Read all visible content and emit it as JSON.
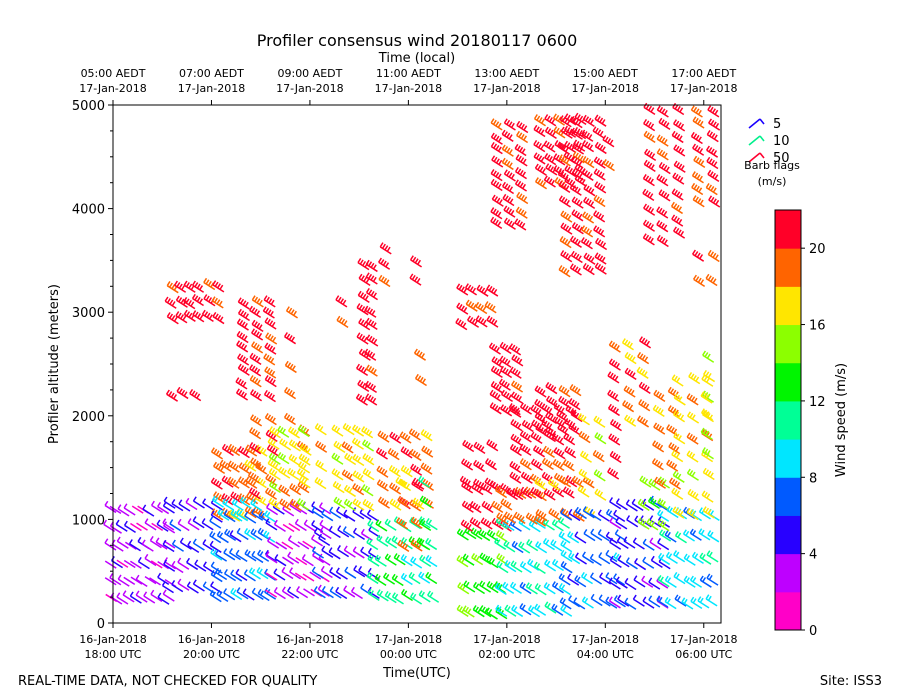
{
  "chart_data": {
    "type": "scatter",
    "title": "Profiler consensus wind 20180117 0600",
    "xlabel": "Time(UTC)",
    "xlabel_top": "Time (local)",
    "ylabel": "Profiler altitude (meters)",
    "ylim": [
      0,
      5000
    ],
    "xlim_hours_since_start": [
      0,
      12.35
    ],
    "y_ticks": [
      0,
      1000,
      2000,
      3000,
      4000,
      5000
    ],
    "x_ticks_bottom": [
      {
        "t": 0,
        "line1": "16-Jan-2018",
        "line2": "18:00 UTC"
      },
      {
        "t": 2,
        "line1": "16-Jan-2018",
        "line2": "20:00 UTC"
      },
      {
        "t": 4,
        "line1": "16-Jan-2018",
        "line2": "22:00 UTC"
      },
      {
        "t": 6,
        "line1": "17-Jan-2018",
        "line2": "00:00 UTC"
      },
      {
        "t": 8,
        "line1": "17-Jan-2018",
        "line2": "02:00 UTC"
      },
      {
        "t": 10,
        "line1": "17-Jan-2018",
        "line2": "04:00 UTC"
      },
      {
        "t": 12,
        "line1": "17-Jan-2018",
        "line2": "06:00 UTC"
      }
    ],
    "x_ticks_top": [
      {
        "t": 0,
        "line1": "05:00 AEDT",
        "line2": "17-Jan-2018"
      },
      {
        "t": 2,
        "line1": "07:00 AEDT",
        "line2": "17-Jan-2018"
      },
      {
        "t": 4,
        "line1": "09:00 AEDT",
        "line2": "17-Jan-2018"
      },
      {
        "t": 6,
        "line1": "11:00 AEDT",
        "line2": "17-Jan-2018"
      },
      {
        "t": 8,
        "line1": "13:00 AEDT",
        "line2": "17-Jan-2018"
      },
      {
        "t": 10,
        "line1": "15:00 AEDT",
        "line2": "17-Jan-2018"
      },
      {
        "t": 12,
        "line1": "17:00 AEDT",
        "line2": "17-Jan-2018"
      }
    ],
    "legend": {
      "title_line1": "Barb flags",
      "title_line2": "(m/s)",
      "entries": [
        {
          "label": "5",
          "color": "#1a00ff"
        },
        {
          "label": "10",
          "color": "#00f08c"
        },
        {
          "label": "50",
          "color": "#ff0030"
        }
      ]
    },
    "colorbar": {
      "label": "Wind speed (m/s)",
      "min": 0,
      "max": 22,
      "step": 2,
      "ticks": [
        0,
        4,
        8,
        12,
        16,
        20
      ],
      "colors": [
        "#ff00c8",
        "#be00ff",
        "#2800ff",
        "#005aff",
        "#00e6ff",
        "#00ff96",
        "#00f500",
        "#8cff00",
        "#ffe600",
        "#ff6400",
        "#ff0028"
      ]
    },
    "barb_blocks": [
      {
        "t0": 0.05,
        "t1": 1.25,
        "y0": 200,
        "y1": 1050,
        "s": 3,
        "cols": 10,
        "rows": 6
      },
      {
        "t0": 1.25,
        "t1": 2.2,
        "y0": 300,
        "y1": 1100,
        "s": 5,
        "cols": 7,
        "rows": 5
      },
      {
        "t0": 1.3,
        "t1": 2.25,
        "y0": 2900,
        "y1": 3200,
        "s": 21,
        "cols": 6,
        "rows": 3
      },
      {
        "t0": 1.3,
        "t1": 1.8,
        "y0": 2100,
        "y1": 2200,
        "s": 21,
        "cols": 3,
        "rows": 1
      },
      {
        "t0": 2.25,
        "t1": 3.1,
        "y0": 1000,
        "y1": 1600,
        "s": 19,
        "cols": 6,
        "rows": 5
      },
      {
        "t0": 2.25,
        "t1": 3.0,
        "y0": 1050,
        "y1": 1150,
        "s": 9,
        "cols": 5,
        "rows": 1
      },
      {
        "t0": 2.2,
        "t1": 3.3,
        "y0": 220,
        "y1": 980,
        "s": 7,
        "cols": 9,
        "rows": 5
      },
      {
        "t0": 2.75,
        "t1": 3.3,
        "y0": 2150,
        "y1": 3050,
        "s": 21,
        "cols": 3,
        "rows": 9
      },
      {
        "t0": 3.0,
        "t1": 3.35,
        "y0": 1200,
        "y1": 1900,
        "s": 19,
        "cols": 2,
        "rows": 6
      },
      {
        "t0": 3.35,
        "t1": 4.4,
        "y0": 250,
        "y1": 1050,
        "s": 3,
        "cols": 8,
        "rows": 6
      },
      {
        "t0": 3.4,
        "t1": 4.0,
        "y0": 1100,
        "y1": 1800,
        "s": 17,
        "cols": 4,
        "rows": 6
      },
      {
        "t0": 3.6,
        "t1": 3.8,
        "y0": 1900,
        "y1": 2400,
        "s": 19,
        "cols": 1,
        "rows": 3
      },
      {
        "t0": 3.65,
        "t1": 3.8,
        "y0": 2700,
        "y1": 2950,
        "s": 21,
        "cols": 1,
        "rows": 2
      },
      {
        "t0": 4.0,
        "t1": 4.35,
        "y0": 1300,
        "y1": 1800,
        "s": 17,
        "cols": 2,
        "rows": 4
      },
      {
        "t0": 4.3,
        "t1": 5.4,
        "y0": 250,
        "y1": 1000,
        "s": 5,
        "cols": 8,
        "rows": 5
      },
      {
        "t0": 4.7,
        "t1": 5.3,
        "y0": 1100,
        "y1": 1800,
        "s": 17,
        "cols": 4,
        "rows": 6
      },
      {
        "t0": 4.65,
        "t1": 4.85,
        "y0": 2850,
        "y1": 3050,
        "s": 21,
        "cols": 1,
        "rows": 2
      },
      {
        "t0": 5.2,
        "t1": 5.35,
        "y0": 2100,
        "y1": 3400,
        "s": 21,
        "cols": 2,
        "rows": 10
      },
      {
        "t0": 5.5,
        "t1": 5.8,
        "y0": 3250,
        "y1": 3550,
        "s": 21,
        "cols": 1,
        "rows": 3
      },
      {
        "t0": 5.4,
        "t1": 6.6,
        "y0": 200,
        "y1": 900,
        "s": 11,
        "cols": 8,
        "rows": 5
      },
      {
        "t0": 5.6,
        "t1": 6.5,
        "y0": 1100,
        "y1": 1750,
        "s": 19,
        "cols": 5,
        "rows": 5
      },
      {
        "t0": 6.0,
        "t1": 6.3,
        "y0": 700,
        "y1": 1300,
        "s": 19,
        "cols": 2,
        "rows": 4
      },
      {
        "t0": 6.2,
        "t1": 6.35,
        "y0": 3250,
        "y1": 3450,
        "s": 21,
        "cols": 1,
        "rows": 2
      },
      {
        "t0": 6.3,
        "t1": 6.45,
        "y0": 2300,
        "y1": 2550,
        "s": 19,
        "cols": 1,
        "rows": 2
      },
      {
        "t0": 6.35,
        "t1": 6.55,
        "y0": 700,
        "y1": 1300,
        "s": 13,
        "cols": 1,
        "rows": 4
      },
      {
        "t0": 7.2,
        "t1": 8.0,
        "y0": 50,
        "y1": 800,
        "s": 13,
        "cols": 6,
        "rows": 4
      },
      {
        "t0": 7.2,
        "t1": 7.8,
        "y0": 2850,
        "y1": 3150,
        "s": 21,
        "cols": 4,
        "rows": 3
      },
      {
        "t0": 7.3,
        "t1": 7.8,
        "y0": 1300,
        "y1": 1650,
        "s": 21,
        "cols": 3,
        "rows": 3
      },
      {
        "t0": 7.3,
        "t1": 8.1,
        "y0": 900,
        "y1": 1250,
        "s": 21,
        "cols": 5,
        "rows": 3
      },
      {
        "t0": 8.0,
        "t1": 9.3,
        "y0": 80,
        "y1": 900,
        "s": 9,
        "cols": 9,
        "rows": 5
      },
      {
        "t0": 7.9,
        "t1": 8.3,
        "y0": 2000,
        "y1": 2600,
        "s": 21,
        "cols": 3,
        "rows": 6
      },
      {
        "t0": 7.9,
        "t1": 8.4,
        "y0": 3800,
        "y1": 4750,
        "s": 21,
        "cols": 3,
        "rows": 9
      },
      {
        "t0": 8.0,
        "t1": 8.8,
        "y0": 950,
        "y1": 1200,
        "s": 19,
        "cols": 5,
        "rows": 2
      },
      {
        "t0": 8.3,
        "t1": 9.4,
        "y0": 1200,
        "y1": 2000,
        "s": 21,
        "cols": 6,
        "rows": 7
      },
      {
        "t0": 8.8,
        "t1": 9.8,
        "y0": 1000,
        "y1": 1300,
        "s": 19,
        "cols": 5,
        "rows": 2
      },
      {
        "t0": 8.8,
        "t1": 9.5,
        "y0": 1800,
        "y1": 2200,
        "s": 21,
        "cols": 4,
        "rows": 4
      },
      {
        "t0": 8.8,
        "t1": 9.6,
        "y0": 4200,
        "y1": 4800,
        "s": 21,
        "cols": 5,
        "rows": 6
      },
      {
        "t0": 9.3,
        "t1": 10.0,
        "y0": 3350,
        "y1": 4800,
        "s": 21,
        "cols": 4,
        "rows": 12
      },
      {
        "t0": 9.3,
        "t1": 10.4,
        "y0": 150,
        "y1": 1000,
        "s": 7,
        "cols": 8,
        "rows": 5
      },
      {
        "t0": 9.7,
        "t1": 10.0,
        "y0": 1200,
        "y1": 1900,
        "s": 17,
        "cols": 2,
        "rows": 5
      },
      {
        "t0": 10.1,
        "t1": 10.3,
        "y0": 4350,
        "y1": 4600,
        "s": 21,
        "cols": 1,
        "rows": 2
      },
      {
        "t0": 10.2,
        "t1": 10.4,
        "y0": 1400,
        "y1": 2600,
        "s": 21,
        "cols": 1,
        "rows": 9
      },
      {
        "t0": 10.3,
        "t1": 11.3,
        "y0": 150,
        "y1": 1100,
        "s": 5,
        "cols": 7,
        "rows": 6
      },
      {
        "t0": 10.6,
        "t1": 10.9,
        "y0": 1900,
        "y1": 2650,
        "s": 19,
        "cols": 2,
        "rows": 6
      },
      {
        "t0": 10.9,
        "t1": 11.3,
        "y0": 900,
        "y1": 1300,
        "s": 15,
        "cols": 3,
        "rows": 3
      },
      {
        "t0": 11.0,
        "t1": 11.3,
        "y0": 3650,
        "y1": 4900,
        "s": 21,
        "cols": 2,
        "rows": 10
      },
      {
        "t0": 11.2,
        "t1": 11.5,
        "y0": 1300,
        "y1": 2150,
        "s": 19,
        "cols": 2,
        "rows": 6
      },
      {
        "t0": 11.3,
        "t1": 12.3,
        "y0": 150,
        "y1": 1000,
        "s": 9,
        "cols": 7,
        "rows": 5
      },
      {
        "t0": 11.5,
        "t1": 11.7,
        "y0": 3700,
        "y1": 4900,
        "s": 21,
        "cols": 1,
        "rows": 10
      },
      {
        "t0": 11.6,
        "t1": 12.2,
        "y0": 1000,
        "y1": 2300,
        "s": 17,
        "cols": 3,
        "rows": 8
      },
      {
        "t0": 12.0,
        "t1": 12.3,
        "y0": 4000,
        "y1": 4900,
        "s": 21,
        "cols": 2,
        "rows": 8
      },
      {
        "t0": 12.0,
        "t1": 12.3,
        "y0": 3250,
        "y1": 3500,
        "s": 19,
        "cols": 2,
        "rows": 2
      },
      {
        "t0": 12.1,
        "t1": 12.3,
        "y0": 1600,
        "y1": 2500,
        "s": 16,
        "cols": 1,
        "rows": 6
      }
    ]
  },
  "footer": {
    "left": "REAL-TIME DATA, NOT CHECKED FOR QUALITY",
    "right": "Site: ISS3"
  }
}
